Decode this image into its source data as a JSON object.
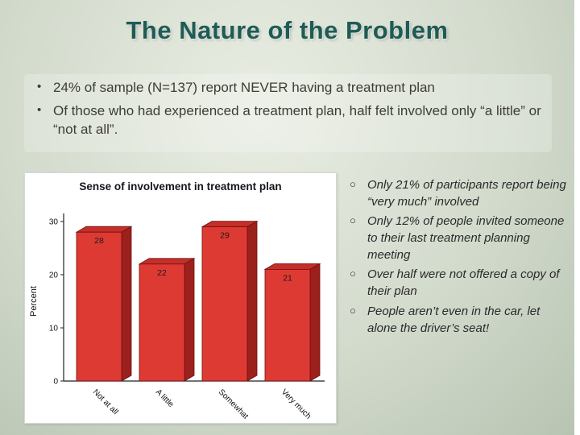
{
  "slide": {
    "title": "The Nature of the Problem",
    "bullets": [
      "24% of sample (N=137) report NEVER having a treatment plan",
      "Of those who had experienced a treatment plan, half felt involved only “a little” or “not at all”."
    ],
    "sub_bullets": [
      "Only 21% of participants report being “very much” involved",
      "Only 12% of people invited someone to their last treatment planning meeting",
      "Over half were not offered a copy of their plan",
      "People aren’t even in the car, let alone the driver’s seat!"
    ]
  },
  "chart_data": {
    "type": "bar",
    "title": "Sense of involvement in treatment plan",
    "categories": [
      "Not at all",
      "A little",
      "Somewhat",
      "Very much"
    ],
    "values": [
      28,
      22,
      29,
      21
    ],
    "xlabel": "",
    "ylabel": "Percent",
    "ylim": [
      0,
      30
    ],
    "yticks": [
      0,
      10,
      20,
      30
    ],
    "legend": "none",
    "grid": false,
    "bar_color": "#de3a34",
    "bar_top_color": "#c52f2a",
    "bar_side_color": "#9c201c",
    "bar_edge_color": "#6e100e"
  },
  "colors": {
    "title_text": "#1e5b55",
    "body_text": "#3e3d33",
    "sub_text": "#2a2a2a",
    "slide_bg": "#d3dbcd",
    "panel_bg": "#ffffff"
  }
}
